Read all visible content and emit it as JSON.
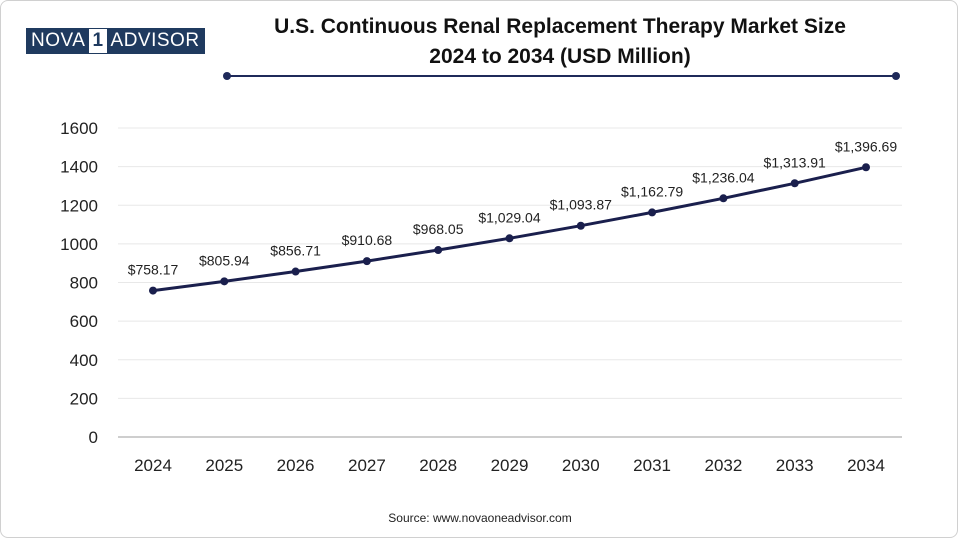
{
  "brand": {
    "part1": "NOVA",
    "part2": "1",
    "part3": "ADVISOR"
  },
  "title_line1": "U.S. Continuous Renal Replacement Therapy Market Size",
  "title_line2": "2024 to 2034 (USD Million)",
  "source": "Source: www.novaoneadvisor.com",
  "colors": {
    "line": "#1a1f4d",
    "rule": "#1f2a5a",
    "logo": "#1f3a5f",
    "grid": "#e8e8e8"
  },
  "chart_data": {
    "type": "line",
    "title": "U.S. Continuous Renal Replacement Therapy Market Size 2024 to 2034 (USD Million)",
    "xlabel": "",
    "ylabel": "",
    "categories": [
      "2024",
      "2025",
      "2026",
      "2027",
      "2028",
      "2029",
      "2030",
      "2031",
      "2032",
      "2033",
      "2034"
    ],
    "values": [
      758.17,
      805.94,
      856.71,
      910.68,
      968.05,
      1029.04,
      1093.87,
      1162.79,
      1236.04,
      1313.91,
      1396.69
    ],
    "data_labels": [
      "$758.17",
      "$805.94",
      "$856.71",
      "$910.68",
      "$968.05",
      "$1,029.04",
      "$1,093.87",
      "$1,162.79",
      "$1,236.04",
      "$1,313.91",
      "$1,396.69"
    ],
    "y_ticks": [
      "0",
      "200",
      "400",
      "600",
      "800",
      "1000",
      "1200",
      "1400",
      "1600"
    ],
    "ylim": [
      0,
      1600
    ],
    "grid": true,
    "legend": "none"
  }
}
